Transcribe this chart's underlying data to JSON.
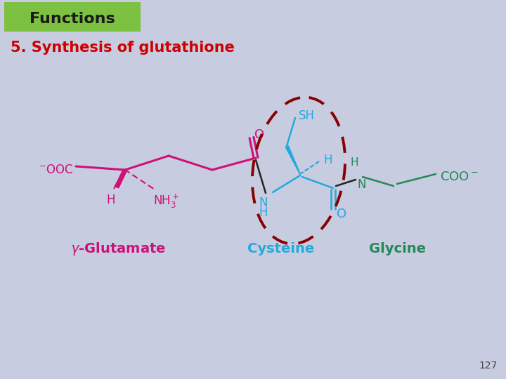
{
  "bg_color": "#c8cce0",
  "header_bg": "#7dc142",
  "header_text": "Functions",
  "header_text_color": "#1a1a1a",
  "title_text": "5. Synthesis of glutathione",
  "title_color": "#cc0000",
  "page_number": "127",
  "page_num_color": "#444444",
  "glutamate_color": "#cc1177",
  "cysteine_color": "#22aadd",
  "glycine_color": "#228855",
  "ellipse_color": "#880000",
  "bond_black": "#222222"
}
